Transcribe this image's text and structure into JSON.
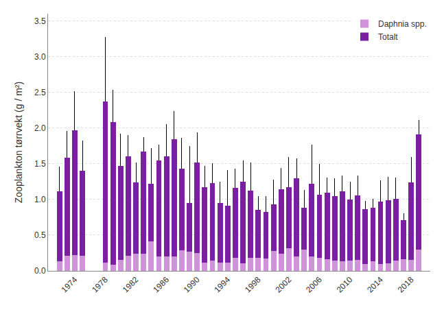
{
  "chart_data": {
    "type": "bar",
    "stacked": true,
    "x": [
      1972,
      1973,
      1974,
      1975,
      1978,
      1979,
      1980,
      1981,
      1982,
      1983,
      1984,
      1985,
      1986,
      1987,
      1988,
      1989,
      1990,
      1991,
      1992,
      1993,
      1994,
      1995,
      1996,
      1997,
      1998,
      1999,
      2000,
      2001,
      2002,
      2003,
      2004,
      2005,
      2006,
      2007,
      2008,
      2009,
      2010,
      2011,
      2012,
      2013,
      2014,
      2015,
      2016,
      2017,
      2018,
      2019
    ],
    "series": [
      {
        "name": "Daphnia spp.",
        "color": "#CE93D8",
        "values": [
          0.13,
          0.21,
          0.22,
          0.21,
          0.12,
          0.09,
          0.15,
          0.21,
          0.24,
          0.24,
          0.41,
          0.2,
          0.2,
          0.2,
          0.29,
          0.27,
          0.25,
          0.12,
          0.14,
          0.12,
          0.12,
          0.18,
          0.11,
          0.18,
          0.18,
          0.17,
          0.28,
          0.24,
          0.32,
          0.2,
          0.3,
          0.2,
          0.18,
          0.16,
          0.14,
          0.13,
          0.14,
          0.15,
          0.1,
          0.13,
          0.1,
          0.11,
          0.14,
          0.16,
          0.15,
          0.3
        ]
      },
      {
        "name": "Totalt",
        "color": "#7B1FA2",
        "values": [
          0.98,
          1.37,
          1.75,
          1.19,
          2.25,
          1.99,
          1.32,
          1.39,
          1.0,
          1.43,
          0.81,
          1.35,
          1.4,
          1.64,
          1.14,
          0.68,
          1.27,
          1.05,
          1.09,
          0.83,
          0.79,
          0.98,
          1.14,
          0.94,
          0.67,
          0.66,
          0.65,
          0.9,
          0.85,
          1.1,
          0.58,
          1.02,
          0.89,
          0.93,
          0.91,
          0.98,
          0.86,
          0.91,
          0.76,
          0.75,
          0.87,
          0.88,
          0.87,
          0.55,
          1.09,
          1.61
        ],
        "error_high": [
          0.35,
          0.38,
          0.55,
          0.42,
          0.9,
          0.45,
          0.45,
          0.3,
          0.28,
          0.2,
          0.5,
          0.22,
          0.45,
          0.4,
          0.43,
          0.8,
          0.42,
          0.3,
          0.28,
          0.3,
          0.5,
          0.27,
          0.3,
          0.4,
          0.2,
          0.22,
          0.35,
          0.3,
          0.42,
          0.27,
          0.25,
          0.55,
          0.43,
          0.22,
          0.25,
          0.22,
          0.25,
          0.27,
          0.12,
          0.13,
          0.3,
          0.33,
          0.3,
          0.1,
          0.35,
          0.2
        ]
      }
    ],
    "ylabel": "Zooplankton tørrvekt (g / m²)",
    "ylim": [
      0,
      3.6
    ],
    "yticks": [
      {
        "value": 0,
        "label": "0.0"
      },
      0.5,
      {
        "value": 1,
        "label": "1.0"
      },
      1.5,
      {
        "value": 2,
        "label": "2.0"
      },
      2.5,
      {
        "value": 3,
        "label": "3.0"
      },
      3.5
    ],
    "xlim": [
      1970.5,
      2020.5
    ],
    "xticks": [
      1974,
      1978,
      1982,
      1986,
      1990,
      1994,
      1998,
      2002,
      2006,
      2010,
      2014,
      2018
    ],
    "grid": "y",
    "legend": "upper right"
  }
}
